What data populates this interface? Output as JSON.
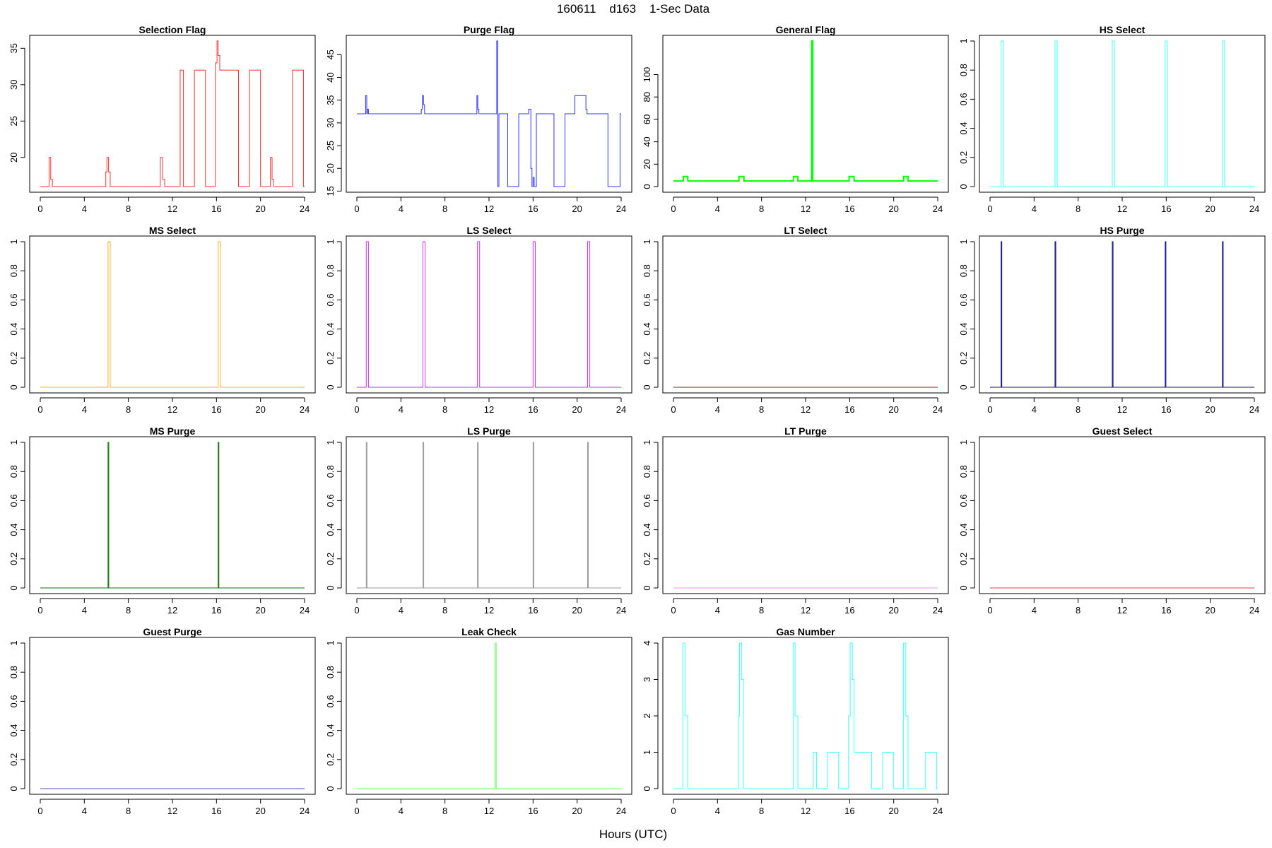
{
  "figure": {
    "title": "160611    d163    1-Sec Data",
    "xlabel": "Hours (UTC)"
  },
  "chart_data": [
    {
      "type": "line",
      "title": "Selection Flag",
      "color": "#ff3030",
      "linewidth": 1,
      "xlim": [
        0,
        24
      ],
      "ylim": [
        16,
        36
      ],
      "yticks": [
        20,
        25,
        30,
        35
      ],
      "xticks": [
        0,
        4,
        8,
        12,
        16,
        20,
        24
      ],
      "x": [
        0,
        0.8,
        0.8,
        0.95,
        0.95,
        1.1,
        1.1,
        5.95,
        5.95,
        6.05,
        6.05,
        6.2,
        6.2,
        6.35,
        6.35,
        10.9,
        10.9,
        11.1,
        11.1,
        11.3,
        11.3,
        12.7,
        12.7,
        13.0,
        13.0,
        14.0,
        14.0,
        15.0,
        15.0,
        15.9,
        15.9,
        16.05,
        16.05,
        16.15,
        16.15,
        16.3,
        16.3,
        16.5,
        16.5,
        18.0,
        18.0,
        19.0,
        19.0,
        20.0,
        20.0,
        20.9,
        20.9,
        21.05,
        21.05,
        21.2,
        21.2,
        21.5,
        21.5,
        22.9,
        22.9,
        23.9,
        23.9,
        24
      ],
      "y": [
        16,
        16,
        20,
        20,
        17,
        17,
        16,
        16,
        18,
        18,
        20,
        20,
        18,
        18,
        16,
        16,
        20,
        20,
        17,
        17,
        16,
        16,
        32,
        32,
        16,
        16,
        32,
        32,
        16,
        16,
        33,
        33,
        36,
        36,
        34,
        34,
        32,
        32,
        32,
        32,
        16,
        16,
        32,
        32,
        16,
        16,
        20,
        20,
        17,
        17,
        16,
        16,
        16,
        16,
        32,
        32,
        16,
        16
      ]
    },
    {
      "type": "line",
      "title": "Purge Flag",
      "color": "#3030ff",
      "linewidth": 1,
      "xlim": [
        0,
        24
      ],
      "ylim": [
        16,
        48
      ],
      "yticks": [
        15,
        20,
        25,
        30,
        35,
        40,
        45
      ],
      "xticks": [
        0,
        4,
        8,
        12,
        16,
        20,
        24
      ],
      "x": [
        0,
        0.8,
        0.8,
        0.9,
        0.9,
        0.95,
        0.95,
        1.05,
        1.05,
        5.85,
        5.85,
        5.95,
        5.95,
        6.05,
        6.05,
        6.15,
        6.15,
        6.25,
        6.25,
        10.9,
        10.9,
        10.98,
        10.98,
        11.08,
        11.08,
        11.2,
        11.2,
        12.7,
        12.7,
        12.8,
        12.8,
        12.9,
        12.9,
        13.7,
        13.7,
        14.7,
        14.7,
        15.6,
        15.6,
        15.8,
        15.8,
        15.9,
        15.9,
        16.0,
        16.0,
        16.1,
        16.1,
        16.3,
        16.3,
        17.9,
        17.9,
        18.9,
        18.9,
        19.8,
        19.8,
        20.8,
        20.8,
        20.9,
        20.9,
        21.0,
        21.0,
        21.1,
        21.1,
        22.8,
        22.8,
        23.9,
        23.9,
        24
      ],
      "y": [
        32,
        32,
        36,
        36,
        32,
        32,
        33,
        33,
        32,
        32,
        33,
        33,
        36,
        36,
        34,
        34,
        32,
        32,
        32,
        32,
        36,
        36,
        33,
        33,
        32,
        32,
        32,
        32,
        48,
        48,
        16,
        16,
        32,
        32,
        16,
        16,
        32,
        32,
        33,
        33,
        20,
        20,
        16,
        16,
        18,
        18,
        16,
        16,
        32,
        32,
        16,
        16,
        32,
        32,
        36,
        36,
        33,
        33,
        32,
        32,
        32,
        32,
        32,
        32,
        16,
        16,
        32,
        32
      ]
    },
    {
      "type": "line",
      "title": "General Flag",
      "color": "#00ff00",
      "linewidth": 2,
      "xlim": [
        0,
        24
      ],
      "ylim": [
        0,
        130
      ],
      "yticks": [
        0,
        20,
        40,
        60,
        80,
        100
      ],
      "xticks": [
        0,
        4,
        8,
        12,
        16,
        20,
        24
      ],
      "x": [
        0,
        0.9,
        0.9,
        1.3,
        1.3,
        5.95,
        5.95,
        6.4,
        6.4,
        10.9,
        10.9,
        11.3,
        11.3,
        12.55,
        12.55,
        12.65,
        12.65,
        15.95,
        15.95,
        16.4,
        16.4,
        20.9,
        20.9,
        21.3,
        21.3,
        24
      ],
      "y": [
        5,
        5,
        9,
        9,
        5,
        5,
        9,
        9,
        5,
        5,
        9,
        9,
        5,
        5,
        130,
        130,
        5,
        5,
        9,
        9,
        5,
        5,
        9,
        9,
        5,
        5
      ]
    },
    {
      "type": "line",
      "title": "HS Select",
      "color": "#40ffff",
      "linewidth": 1,
      "xlim": [
        0,
        24
      ],
      "ylim": [
        0,
        1
      ],
      "yticks": [
        0,
        0.2,
        0.4,
        0.6,
        0.8,
        1.0
      ],
      "xticks": [
        0,
        4,
        8,
        12,
        16,
        20,
        24
      ],
      "x": [
        0,
        1.0,
        1.0,
        1.2,
        1.2,
        5.9,
        5.9,
        6.1,
        6.1,
        11.1,
        11.1,
        11.3,
        11.3,
        15.9,
        15.9,
        16.1,
        16.1,
        21.1,
        21.1,
        21.3,
        21.3,
        24
      ],
      "y": [
        0,
        0,
        1,
        1,
        0,
        0,
        1,
        1,
        0,
        0,
        1,
        1,
        0,
        0,
        1,
        1,
        0,
        0,
        1,
        1,
        0,
        0
      ]
    },
    {
      "type": "line",
      "title": "MS Select",
      "color": "#ffb020",
      "linewidth": 1,
      "xlim": [
        0,
        24
      ],
      "ylim": [
        0,
        1
      ],
      "yticks": [
        0,
        0.2,
        0.4,
        0.6,
        0.8,
        1.0
      ],
      "xticks": [
        0,
        4,
        8,
        12,
        16,
        20,
        24
      ],
      "x": [
        0,
        6.15,
        6.15,
        6.35,
        6.35,
        16.15,
        16.15,
        16.35,
        16.35,
        24
      ],
      "y": [
        0,
        0,
        1,
        1,
        0,
        0,
        1,
        1,
        0,
        0
      ]
    },
    {
      "type": "line",
      "title": "LS Select",
      "color": "#c030ff",
      "linewidth": 1,
      "xlim": [
        0,
        24
      ],
      "ylim": [
        0,
        1
      ],
      "yticks": [
        0,
        0.2,
        0.4,
        0.6,
        0.8,
        1.0
      ],
      "xticks": [
        0,
        4,
        8,
        12,
        16,
        20,
        24
      ],
      "x": [
        0,
        0.85,
        0.85,
        1.05,
        1.05,
        6.0,
        6.0,
        6.2,
        6.2,
        10.95,
        10.95,
        11.15,
        11.15,
        16.0,
        16.0,
        16.2,
        16.2,
        20.95,
        20.95,
        21.15,
        21.15,
        24
      ],
      "y": [
        0,
        0,
        1,
        1,
        0,
        0,
        1,
        1,
        0,
        0,
        1,
        1,
        0,
        0,
        1,
        1,
        0,
        0,
        1,
        1,
        0,
        0
      ]
    },
    {
      "type": "line",
      "title": "LT Select",
      "color": "#a01818",
      "linewidth": 1,
      "xlim": [
        0,
        24
      ],
      "ylim": [
        0,
        1
      ],
      "yticks": [
        0,
        0.2,
        0.4,
        0.6,
        0.8,
        1.0
      ],
      "xticks": [
        0,
        4,
        8,
        12,
        16,
        20,
        24
      ],
      "x": [
        0,
        24
      ],
      "y": [
        0,
        0
      ]
    },
    {
      "type": "line",
      "title": "HS Purge",
      "color": "#101080",
      "linewidth": 1,
      "xlim": [
        0,
        24
      ],
      "ylim": [
        0,
        1
      ],
      "yticks": [
        0,
        0.2,
        0.4,
        0.6,
        0.8,
        1.0
      ],
      "xticks": [
        0,
        4,
        8,
        12,
        16,
        20,
        24
      ],
      "x": [
        0,
        1.0,
        1.0,
        1.07,
        1.07,
        5.9,
        5.9,
        5.97,
        5.97,
        11.1,
        11.1,
        11.17,
        11.17,
        15.9,
        15.9,
        15.97,
        15.97,
        21.1,
        21.1,
        21.17,
        21.17,
        24
      ],
      "y": [
        0,
        0,
        1,
        1,
        0,
        0,
        1,
        1,
        0,
        0,
        1,
        1,
        0,
        0,
        1,
        1,
        0,
        0,
        1,
        1,
        0,
        0
      ]
    },
    {
      "type": "line",
      "title": "MS Purge",
      "color": "#107010",
      "linewidth": 1,
      "xlim": [
        0,
        24
      ],
      "ylim": [
        0,
        1
      ],
      "yticks": [
        0,
        0.2,
        0.4,
        0.6,
        0.8,
        1.0
      ],
      "xticks": [
        0,
        4,
        8,
        12,
        16,
        20,
        24
      ],
      "x": [
        0,
        6.15,
        6.15,
        6.22,
        6.22,
        16.15,
        16.15,
        16.22,
        16.22,
        24
      ],
      "y": [
        0,
        0,
        1,
        1,
        0,
        0,
        1,
        1,
        0,
        0
      ]
    },
    {
      "type": "line",
      "title": "LS Purge",
      "color": "#999999",
      "linewidth": 1,
      "xlim": [
        0,
        24
      ],
      "ylim": [
        0,
        1
      ],
      "yticks": [
        0,
        0.2,
        0.4,
        0.6,
        0.8,
        1.0
      ],
      "xticks": [
        0,
        4,
        8,
        12,
        16,
        20,
        24
      ],
      "x": [
        0,
        0.85,
        0.85,
        0.92,
        0.92,
        6.0,
        6.0,
        6.07,
        6.07,
        10.95,
        10.95,
        11.02,
        11.02,
        16.0,
        16.0,
        16.07,
        16.07,
        20.95,
        20.95,
        21.02,
        21.02,
        24
      ],
      "y": [
        0,
        0,
        1,
        1,
        0,
        0,
        1,
        1,
        0,
        0,
        1,
        1,
        0,
        0,
        1,
        1,
        0,
        0,
        1,
        1,
        0,
        0
      ]
    },
    {
      "type": "line",
      "title": "LT Purge",
      "color": "#ee99ee",
      "linewidth": 1,
      "xlim": [
        0,
        24
      ],
      "ylim": [
        0,
        1
      ],
      "yticks": [
        0,
        0.2,
        0.4,
        0.6,
        0.8,
        1.0
      ],
      "xticks": [
        0,
        4,
        8,
        12,
        16,
        20,
        24
      ],
      "x": [
        0,
        24
      ],
      "y": [
        0,
        0
      ]
    },
    {
      "type": "line",
      "title": "Guest Select",
      "color": "#e04040",
      "linewidth": 1,
      "xlim": [
        0,
        24
      ],
      "ylim": [
        0,
        1
      ],
      "yticks": [
        0,
        0.2,
        0.4,
        0.6,
        0.8,
        1.0
      ],
      "xticks": [
        0,
        4,
        8,
        12,
        16,
        20,
        24
      ],
      "x": [
        0,
        24
      ],
      "y": [
        0,
        0
      ]
    },
    {
      "type": "line",
      "title": "Guest Purge",
      "color": "#5050c0",
      "linewidth": 1,
      "xlim": [
        0,
        24
      ],
      "ylim": [
        0,
        1
      ],
      "yticks": [
        0,
        0.2,
        0.4,
        0.6,
        0.8,
        1.0
      ],
      "xticks": [
        0,
        4,
        8,
        12,
        16,
        20,
        24
      ],
      "x": [
        0,
        24
      ],
      "y": [
        0,
        0
      ]
    },
    {
      "type": "line",
      "title": "Leak Check",
      "color": "#60ff60",
      "linewidth": 1,
      "xlim": [
        0,
        24
      ],
      "ylim": [
        0,
        1
      ],
      "yticks": [
        0,
        0.2,
        0.4,
        0.6,
        0.8,
        1.0
      ],
      "xticks": [
        0,
        4,
        8,
        12,
        16,
        20,
        24
      ],
      "x": [
        0,
        12.55,
        12.55,
        12.65,
        12.65,
        24
      ],
      "y": [
        0,
        0,
        1,
        1,
        0,
        0
      ]
    },
    {
      "type": "line",
      "title": "Gas Number",
      "color": "#40ffff",
      "linewidth": 1,
      "xlim": [
        0,
        24
      ],
      "ylim": [
        0,
        4
      ],
      "yticks": [
        0,
        1,
        2,
        3,
        4
      ],
      "xticks": [
        0,
        4,
        8,
        12,
        16,
        20,
        24
      ],
      "x": [
        0,
        0.85,
        0.85,
        1.05,
        1.05,
        1.3,
        1.3,
        5.9,
        5.9,
        6.0,
        6.0,
        6.2,
        6.2,
        6.35,
        6.35,
        10.9,
        10.9,
        11.05,
        11.05,
        11.3,
        11.3,
        12.7,
        12.7,
        13.0,
        13.0,
        14.0,
        14.0,
        15.0,
        15.0,
        15.9,
        15.9,
        16.05,
        16.05,
        16.25,
        16.25,
        16.4,
        16.4,
        18.0,
        18.0,
        19.0,
        19.0,
        20.0,
        20.0,
        20.9,
        20.9,
        21.1,
        21.1,
        21.3,
        21.3,
        22.9,
        22.9,
        23.9,
        23.9,
        24
      ],
      "y": [
        0,
        0,
        4,
        4,
        2,
        2,
        0,
        0,
        2,
        2,
        4,
        4,
        3,
        3,
        0,
        0,
        4,
        4,
        2,
        2,
        0,
        0,
        1,
        1,
        0,
        0,
        1,
        1,
        0,
        0,
        2,
        2,
        4,
        4,
        3,
        3,
        1,
        1,
        0,
        0,
        1,
        1,
        0,
        0,
        4,
        4,
        2,
        2,
        0,
        0,
        1,
        1,
        0,
        0
      ]
    }
  ]
}
